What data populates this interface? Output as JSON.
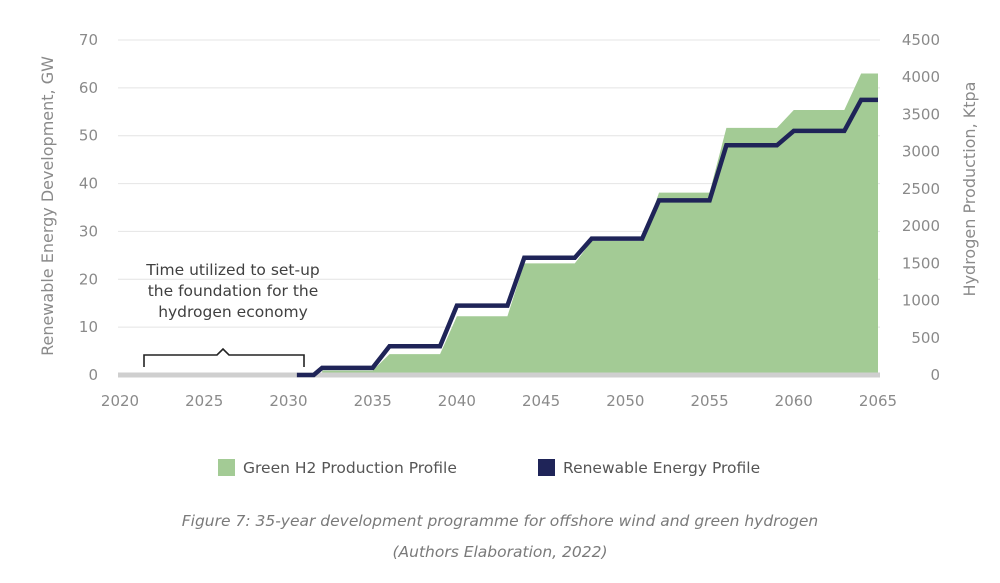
{
  "chart_data": {
    "type": "area",
    "x_range": [
      2020,
      2065
    ],
    "x_ticks": [
      2020,
      2025,
      2030,
      2035,
      2040,
      2045,
      2050,
      2055,
      2060,
      2065
    ],
    "ylabel_left": "Renewable Energy Development, GW",
    "ylim_left": [
      0,
      70
    ],
    "y_ticks_left": [
      0,
      10,
      20,
      30,
      40,
      50,
      60,
      70
    ],
    "ylabel_right": "Hydrogen Production, Ktpa",
    "ylim_right": [
      0,
      4500
    ],
    "y_ticks_right": [
      0,
      500,
      1000,
      1500,
      2000,
      2500,
      3000,
      3500,
      4000,
      4500
    ],
    "grid": true,
    "legend_position": "bottom",
    "series": [
      {
        "name": "Green H2 Production Profile",
        "kind": "area",
        "axis": "right",
        "color": "#a3cb95",
        "x": [
          2031,
          2032,
          2032,
          2035,
          2036,
          2036,
          2039,
          2040,
          2040,
          2043,
          2044,
          2044,
          2047,
          2048,
          2048,
          2051,
          2052,
          2052,
          2055,
          2056,
          2056,
          2059,
          2060,
          2060,
          2063,
          2064,
          2064,
          2065
        ],
        "values": [
          0,
          0,
          60,
          60,
          280,
          280,
          280,
          790,
          790,
          790,
          1500,
          1500,
          1500,
          1800,
          1800,
          1800,
          2450,
          2450,
          2450,
          3320,
          3320,
          3320,
          3560,
          3560,
          3560,
          4050,
          4050,
          4050
        ]
      },
      {
        "name": "Renewable Energy Profile",
        "kind": "line",
        "axis": "left",
        "color": "#1f2458",
        "x": [
          2030.5,
          2031.5,
          2032,
          2035,
          2036,
          2039,
          2040,
          2043,
          2044,
          2047,
          2048,
          2051,
          2052,
          2055,
          2056,
          2059,
          2060,
          2063,
          2064,
          2065
        ],
        "values": [
          0,
          0,
          1.5,
          1.5,
          6,
          6,
          14.5,
          14.5,
          24.5,
          24.5,
          28.5,
          28.5,
          36.5,
          36.5,
          48,
          48,
          51,
          51,
          57.5,
          57.5
        ]
      }
    ],
    "annotations": [
      {
        "text_lines": [
          "Time utilized to set-up",
          "the foundation for the",
          "hydrogen economy"
        ],
        "x_span": [
          2021,
          2030.5
        ]
      }
    ]
  },
  "caption": {
    "line1": "Figure 7: 35-year development programme for offshore wind and green hydrogen",
    "line2": "(Authors Elaboration, 2022)"
  }
}
